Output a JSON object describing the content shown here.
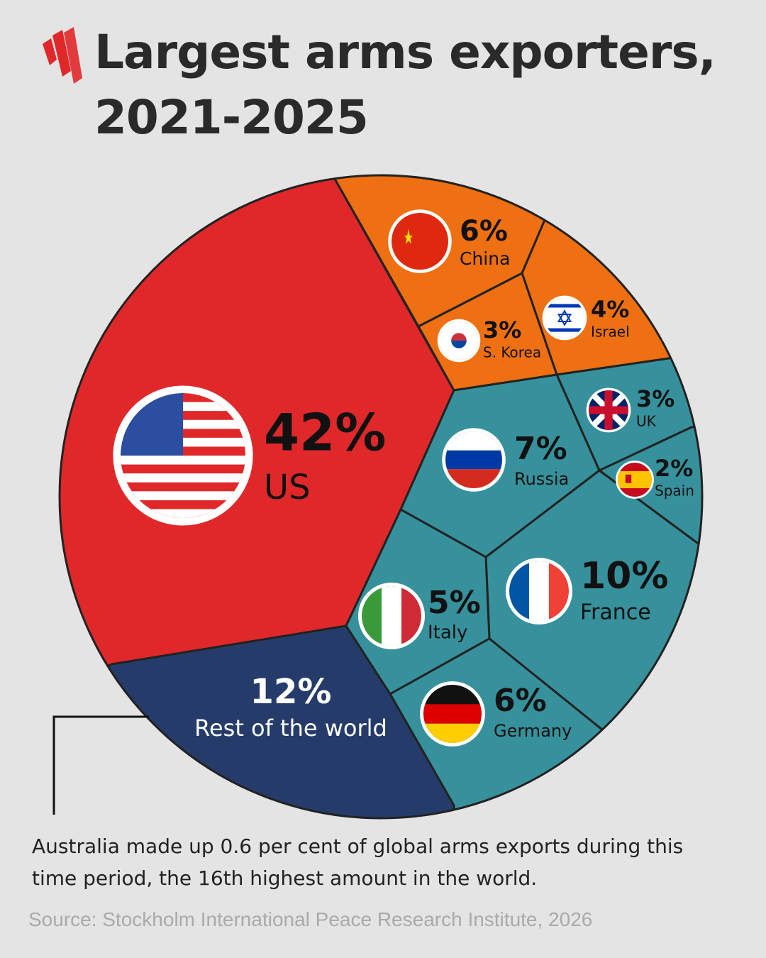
{
  "chart_data": {
    "type": "voronoi",
    "title": "Largest arms exporters, 2021-2025",
    "categories": [
      "US",
      "China",
      "Israel",
      "S. Korea",
      "UK",
      "Spain",
      "Russia",
      "France",
      "Italy",
      "Germany",
      "Rest of the world"
    ],
    "values": [
      42,
      6,
      4,
      3,
      3,
      2,
      7,
      10,
      5,
      6,
      12
    ],
    "value_labels": [
      "42%",
      "6%",
      "4%",
      "3%",
      "3%",
      "2%",
      "7%",
      "10%",
      "5%",
      "6%",
      "12%"
    ],
    "colors": [
      "#e0282a",
      "#ee7012",
      "#ee7012",
      "#ee7012",
      "#36919c",
      "#36919c",
      "#36919c",
      "#36919c",
      "#36919c",
      "#36919c",
      "#253c6b"
    ],
    "annotation": "Australia made up 0.6 per cent of global arms exports during this time period, the 16th highest amount in the world.",
    "source": "Source: Stockholm International Peace Research Institute, 2026"
  }
}
